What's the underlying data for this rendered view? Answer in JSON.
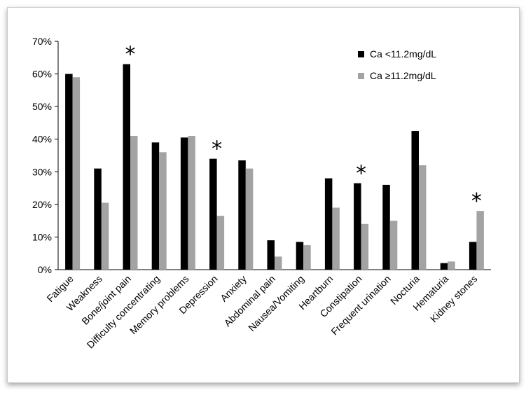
{
  "chart_data": {
    "type": "bar",
    "categories": [
      "Fatigue",
      "Weakness",
      "Bone/joint pain",
      "Difficulty concentrating",
      "Memory problems",
      "Depression",
      "Anxiety",
      "Abdominal pain",
      "Nausea/Vomiting",
      "Heartburn",
      "Constipation",
      "Frequent urination",
      "Nocturia",
      "Hematuria",
      "Kidney stones"
    ],
    "series": [
      {
        "name": "Ca <11.2mg/dL",
        "color": "#000000",
        "values": [
          60,
          31,
          63,
          39,
          40.5,
          34,
          33.5,
          9,
          8.5,
          28,
          26.5,
          26,
          42.5,
          2,
          8.5
        ]
      },
      {
        "name": "Ca ≥11.2mg/dL",
        "color": "#a3a3a3",
        "values": [
          59,
          20.5,
          41,
          36,
          41,
          16.5,
          31,
          4,
          7.5,
          19,
          14,
          15,
          32,
          2.5,
          18
        ]
      }
    ],
    "significant_marker": "*",
    "significant_categories": [
      "Bone/joint pain",
      "Depression",
      "Constipation",
      "Kidney stones"
    ],
    "y_ticks": [
      "0%",
      "10%",
      "20%",
      "30%",
      "40%",
      "50%",
      "60%",
      "70%"
    ],
    "ylim": [
      0,
      70
    ],
    "y_unit": "%",
    "grid": false,
    "legend_position": "top-right",
    "title": "",
    "xlabel": "",
    "ylabel": ""
  }
}
